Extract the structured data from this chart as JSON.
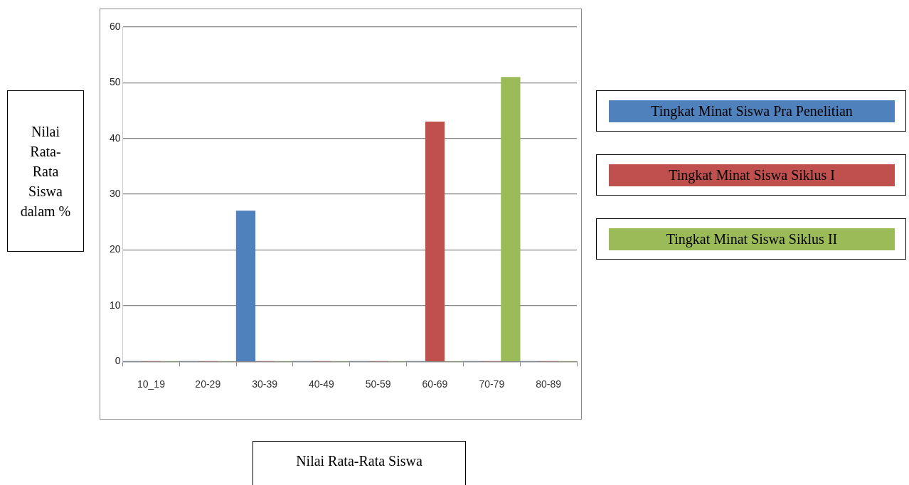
{
  "chart_data": {
    "type": "bar",
    "xlabel": "Nilai Rata-Rata Siswa",
    "ylabel": "Nilai Rata-Rata Siswa dalam %",
    "categories": [
      "10_19",
      "20-29",
      "30-39",
      "40-49",
      "50-59",
      "60-69",
      "70-79",
      "80-89"
    ],
    "series": [
      {
        "name": "Tingkat Minat Siswa Pra Penelitian",
        "color": "#4f81bd",
        "values": [
          0,
          0,
          27,
          0,
          0,
          0,
          0,
          0
        ]
      },
      {
        "name": "Tingkat Minat Siswa Siklus I",
        "color": "#c0504d",
        "values": [
          0,
          0,
          0,
          0,
          0,
          43,
          0,
          0
        ]
      },
      {
        "name": "Tingkat Minat Siswa Siklus II",
        "color": "#9bbb59",
        "values": [
          0,
          0,
          0,
          0,
          0,
          0,
          51,
          0
        ]
      }
    ],
    "ylim": [
      0,
      60
    ],
    "yticks": [
      0,
      10,
      20,
      30,
      40,
      50,
      60
    ],
    "grid": "y",
    "legend": "right"
  }
}
